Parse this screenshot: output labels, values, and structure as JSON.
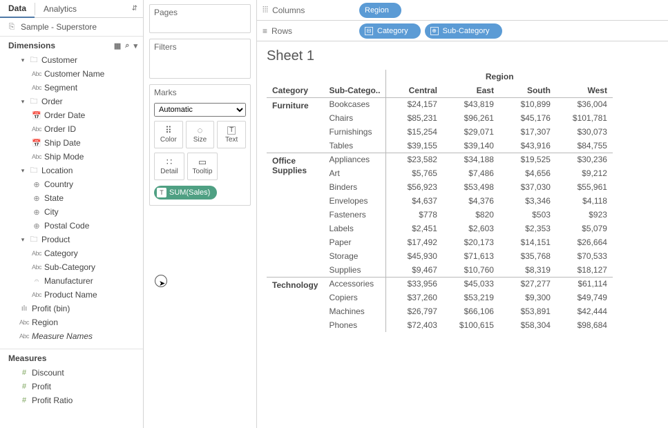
{
  "colors": {
    "pill_green": "#4fa083",
    "pill_blue": "#5b9bd5",
    "border": "#d4d4d4"
  },
  "datapane": {
    "tabs": {
      "data": "Data",
      "analytics": "Analytics"
    },
    "datasource": "Sample - Superstore",
    "dimensions_label": "Dimensions",
    "measures_label": "Measures",
    "groups": [
      {
        "name": "Customer",
        "items": [
          {
            "icon": "Abc",
            "label": "Customer Name"
          },
          {
            "icon": "Abc",
            "label": "Segment"
          }
        ]
      },
      {
        "name": "Order",
        "items": [
          {
            "icon": "cal",
            "label": "Order Date"
          },
          {
            "icon": "Abc",
            "label": "Order ID"
          },
          {
            "icon": "cal",
            "label": "Ship Date"
          },
          {
            "icon": "Abc",
            "label": "Ship Mode"
          }
        ]
      },
      {
        "name": "Location",
        "items": [
          {
            "icon": "geo",
            "label": "Country"
          },
          {
            "icon": "geo",
            "label": "State"
          },
          {
            "icon": "geo",
            "label": "City"
          },
          {
            "icon": "geo",
            "label": "Postal Code"
          }
        ]
      },
      {
        "name": "Product",
        "items": [
          {
            "icon": "Abc",
            "label": "Category"
          },
          {
            "icon": "Abc",
            "label": "Sub-Category"
          },
          {
            "icon": "clip",
            "label": "Manufacturer"
          },
          {
            "icon": "Abc",
            "label": "Product Name"
          }
        ]
      }
    ],
    "loose_dims": [
      {
        "icon": "bar",
        "label": "Profit (bin)"
      },
      {
        "icon": "Abc",
        "label": "Region"
      },
      {
        "icon": "Abc",
        "label": "Measure Names",
        "italic": true
      }
    ],
    "measures": [
      {
        "icon": "#",
        "label": "Discount"
      },
      {
        "icon": "#",
        "label": "Profit"
      },
      {
        "icon": "#",
        "label": "Profit Ratio"
      }
    ]
  },
  "cards": {
    "pages": "Pages",
    "filters": "Filters",
    "marks": "Marks",
    "marktype": "Automatic",
    "buttons": {
      "color": "Color",
      "size": "Size",
      "text": "Text",
      "detail": "Detail",
      "tooltip": "Tooltip"
    },
    "text_pill": "SUM(Sales)"
  },
  "shelves": {
    "columns": "Columns",
    "rows": "Rows",
    "col_pills": [
      "Region"
    ],
    "row_pills": [
      "Category",
      "Sub-Category"
    ]
  },
  "viz": {
    "title": "Sheet 1",
    "span_header": "Region",
    "corner": [
      "Category",
      "Sub-Catego.."
    ],
    "regions": [
      "Central",
      "East",
      "South",
      "West"
    ],
    "groups": [
      {
        "category": "Furniture",
        "rows": [
          {
            "sub": "Bookcases",
            "vals": [
              "$24,157",
              "$43,819",
              "$10,899",
              "$36,004"
            ]
          },
          {
            "sub": "Chairs",
            "vals": [
              "$85,231",
              "$96,261",
              "$45,176",
              "$101,781"
            ]
          },
          {
            "sub": "Furnishings",
            "vals": [
              "$15,254",
              "$29,071",
              "$17,307",
              "$30,073"
            ]
          },
          {
            "sub": "Tables",
            "vals": [
              "$39,155",
              "$39,140",
              "$43,916",
              "$84,755"
            ]
          }
        ]
      },
      {
        "category": "Office Supplies",
        "rows": [
          {
            "sub": "Appliances",
            "vals": [
              "$23,582",
              "$34,188",
              "$19,525",
              "$30,236"
            ]
          },
          {
            "sub": "Art",
            "vals": [
              "$5,765",
              "$7,486",
              "$4,656",
              "$9,212"
            ]
          },
          {
            "sub": "Binders",
            "vals": [
              "$56,923",
              "$53,498",
              "$37,030",
              "$55,961"
            ]
          },
          {
            "sub": "Envelopes",
            "vals": [
              "$4,637",
              "$4,376",
              "$3,346",
              "$4,118"
            ]
          },
          {
            "sub": "Fasteners",
            "vals": [
              "$778",
              "$820",
              "$503",
              "$923"
            ]
          },
          {
            "sub": "Labels",
            "vals": [
              "$2,451",
              "$2,603",
              "$2,353",
              "$5,079"
            ]
          },
          {
            "sub": "Paper",
            "vals": [
              "$17,492",
              "$20,173",
              "$14,151",
              "$26,664"
            ]
          },
          {
            "sub": "Storage",
            "vals": [
              "$45,930",
              "$71,613",
              "$35,768",
              "$70,533"
            ]
          },
          {
            "sub": "Supplies",
            "vals": [
              "$9,467",
              "$10,760",
              "$8,319",
              "$18,127"
            ]
          }
        ]
      },
      {
        "category": "Technology",
        "rows": [
          {
            "sub": "Accessories",
            "vals": [
              "$33,956",
              "$45,033",
              "$27,277",
              "$61,114"
            ]
          },
          {
            "sub": "Copiers",
            "vals": [
              "$37,260",
              "$53,219",
              "$9,300",
              "$49,749"
            ]
          },
          {
            "sub": "Machines",
            "vals": [
              "$26,797",
              "$66,106",
              "$53,891",
              "$42,444"
            ]
          },
          {
            "sub": "Phones",
            "vals": [
              "$72,403",
              "$100,615",
              "$58,304",
              "$98,684"
            ]
          }
        ]
      }
    ]
  }
}
